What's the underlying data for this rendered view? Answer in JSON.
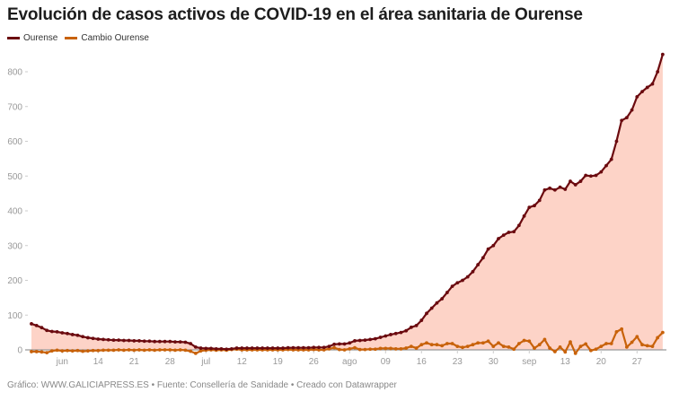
{
  "chart_data": {
    "type": "line",
    "title": "Evolución de casos activos de COVID-19 en el área sanitaria de Ourense",
    "x_start": "2020-06-01",
    "x_end": "2020-10-02",
    "x_ticks": [
      {
        "date": "2020-06-07",
        "label": "jun"
      },
      {
        "date": "2020-06-14",
        "label": "14"
      },
      {
        "date": "2020-06-21",
        "label": "21"
      },
      {
        "date": "2020-06-28",
        "label": "28"
      },
      {
        "date": "2020-07-05",
        "label": "jul"
      },
      {
        "date": "2020-07-12",
        "label": "12"
      },
      {
        "date": "2020-07-19",
        "label": "19"
      },
      {
        "date": "2020-07-26",
        "label": "26"
      },
      {
        "date": "2020-08-02",
        "label": "ago"
      },
      {
        "date": "2020-08-09",
        "label": "09"
      },
      {
        "date": "2020-08-16",
        "label": "16"
      },
      {
        "date": "2020-08-23",
        "label": "23"
      },
      {
        "date": "2020-08-30",
        "label": "30"
      },
      {
        "date": "2020-09-06",
        "label": "sep"
      },
      {
        "date": "2020-09-13",
        "label": "13"
      },
      {
        "date": "2020-09-20",
        "label": "20"
      },
      {
        "date": "2020-09-27",
        "label": "27"
      }
    ],
    "y_ticks": [
      0,
      100,
      200,
      300,
      400,
      500,
      600,
      700,
      800
    ],
    "ylim": [
      0,
      850
    ],
    "grid": false,
    "legend": "top-left",
    "series": [
      {
        "name": "Ourense",
        "color": "#6b0a0f",
        "fill": "#fdd3c7",
        "values": [
          75,
          70,
          64,
          56,
          53,
          52,
          49,
          47,
          44,
          42,
          38,
          35,
          33,
          31,
          30,
          29,
          28,
          28,
          27,
          27,
          26,
          26,
          25,
          25,
          24,
          24,
          24,
          24,
          23,
          23,
          22,
          18,
          8,
          5,
          4,
          4,
          3,
          3,
          2,
          3,
          5,
          5,
          5,
          5,
          5,
          5,
          5,
          5,
          5,
          5,
          6,
          6,
          6,
          6,
          6,
          7,
          7,
          7,
          10,
          16,
          17,
          17,
          20,
          26,
          27,
          28,
          30,
          32,
          36,
          40,
          44,
          47,
          50,
          55,
          65,
          70,
          85,
          105,
          120,
          135,
          147,
          165,
          183,
          193,
          200,
          210,
          225,
          245,
          265,
          290,
          300,
          320,
          330,
          338,
          340,
          358,
          385,
          410,
          415,
          430,
          460,
          465,
          460,
          468,
          462,
          485,
          475,
          485,
          502,
          500,
          502,
          512,
          530,
          548,
          600,
          660,
          668,
          690,
          728,
          743,
          755,
          765,
          800,
          850
        ]
      },
      {
        "name": "Cambio Ourense",
        "color": "#c8620a",
        "values": [
          -5,
          -5,
          -6,
          -8,
          -3,
          -1,
          -3,
          -2,
          -3,
          -2,
          -4,
          -3,
          -2,
          -2,
          -1,
          -1,
          -1,
          0,
          -1,
          0,
          -1,
          0,
          -1,
          0,
          -1,
          0,
          0,
          0,
          -1,
          0,
          -1,
          -4,
          -10,
          -3,
          -1,
          0,
          -1,
          0,
          -1,
          1,
          2,
          0,
          0,
          0,
          0,
          0,
          0,
          0,
          0,
          0,
          1,
          0,
          0,
          0,
          0,
          1,
          0,
          0,
          3,
          6,
          1,
          0,
          3,
          6,
          1,
          1,
          2,
          2,
          4,
          4,
          4,
          3,
          3,
          5,
          10,
          5,
          15,
          20,
          15,
          15,
          12,
          18,
          18,
          10,
          7,
          10,
          15,
          20,
          20,
          25,
          10,
          20,
          10,
          8,
          2,
          18,
          27,
          25,
          5,
          15,
          30,
          5,
          -5,
          8,
          -6,
          23,
          -10,
          10,
          17,
          -2,
          2,
          10,
          18,
          18,
          52,
          60,
          8,
          22,
          38,
          15,
          12,
          10,
          35,
          50
        ]
      }
    ]
  },
  "footer": "Gráfico: WWW.GALICIAPRESS.ES • Fuente: Consellería de Sanidade • Creado con Datawrapper"
}
